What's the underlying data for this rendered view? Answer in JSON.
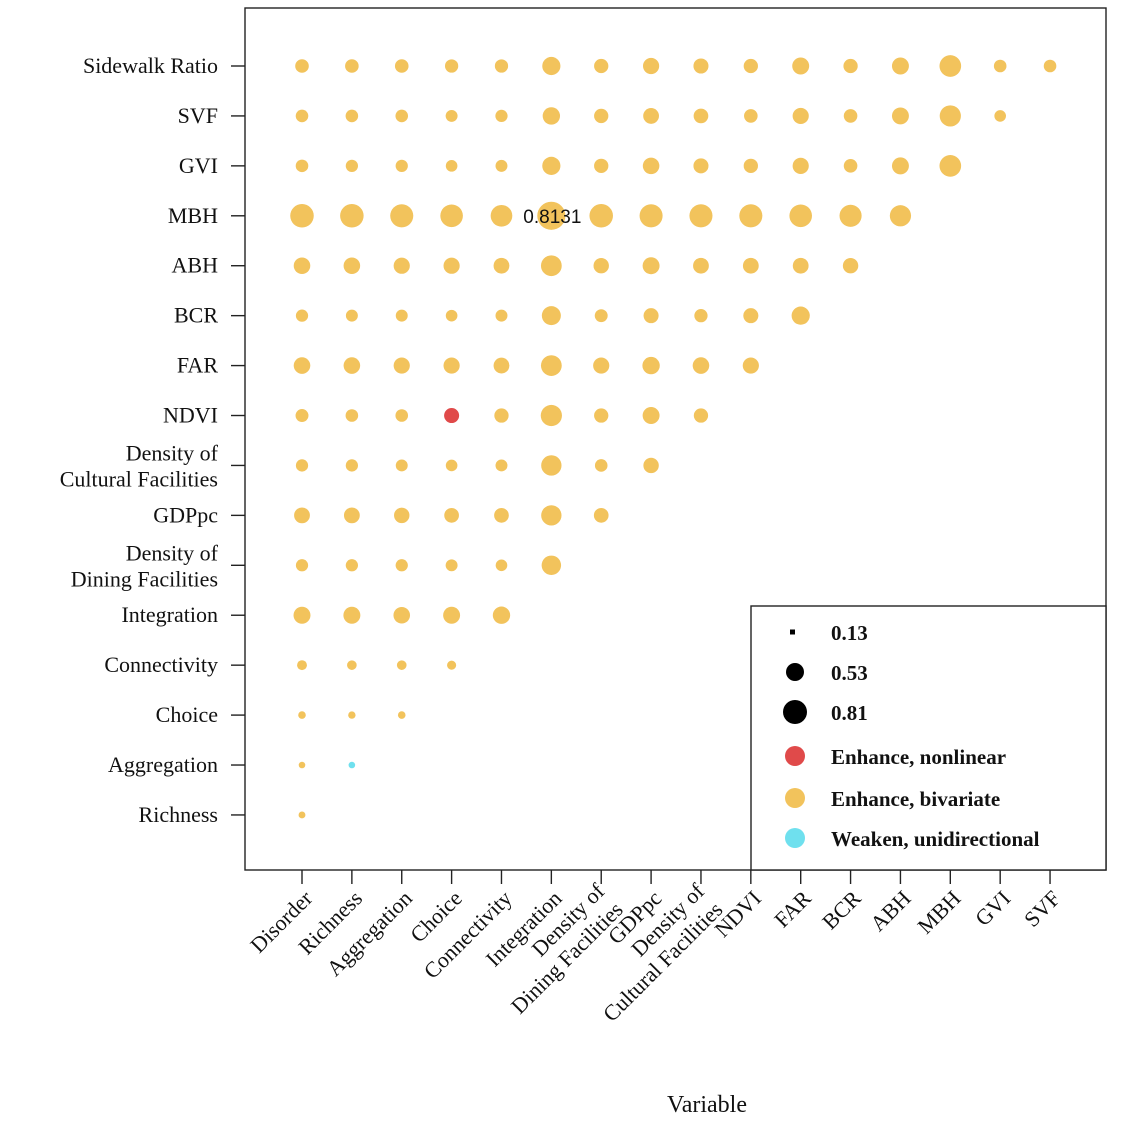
{
  "chart_data": {
    "type": "scatter",
    "subtype": "lower-triangle bubble matrix",
    "title": "",
    "xlabel": "Variable",
    "ylabel": "",
    "x_categories": [
      "Disorder",
      "Richness",
      "Aggregation",
      "Choice",
      "Connectivity",
      "Integration",
      "Density of\nDining Facilities",
      "GDPpc",
      "Density of\nCultural Facilities",
      "NDVI",
      "FAR",
      "BCR",
      "ABH",
      "MBH",
      "GVI",
      "SVF"
    ],
    "y_categories": [
      "Sidewalk Ratio",
      "SVF",
      "GVI",
      "MBH",
      "ABH",
      "BCR",
      "FAR",
      "NDVI",
      "Density of\nCultural Facilities",
      "GDPpc",
      "Density of\nDining Facilities",
      "Integration",
      "Connectivity",
      "Choice",
      "Aggregation",
      "Richness"
    ],
    "colors": {
      "Enhance, nonlinear": "#e04a4a",
      "Enhance, bivariate": "#f2c35c",
      "Weaken, unidirectional": "#6fe0ee"
    },
    "size_legend": [
      0.13,
      0.53,
      0.81
    ],
    "legend_position": "bottom-right",
    "legend_labels": [
      "0.13",
      "0.53",
      "0.81",
      "Enhance, nonlinear",
      "Enhance, bivariate",
      "Weaken, unidirectional"
    ],
    "annotation": {
      "text": "0.8131",
      "row": "MBH",
      "col": "Integration"
    },
    "rows": [
      {
        "y": "Sidewalk Ratio",
        "values": [
          0.48,
          0.48,
          0.48,
          0.47,
          0.47,
          0.6,
          0.5,
          0.55,
          0.52,
          0.5,
          0.57,
          0.5,
          0.57,
          0.68,
          0.45,
          0.45
        ],
        "types": [
          "b",
          "b",
          "b",
          "b",
          "b",
          "b",
          "b",
          "b",
          "b",
          "b",
          "b",
          "b",
          "b",
          "b",
          "b",
          "b"
        ]
      },
      {
        "y": "SVF",
        "values": [
          0.45,
          0.45,
          0.45,
          0.43,
          0.44,
          0.58,
          0.5,
          0.54,
          0.51,
          0.48,
          0.55,
          0.48,
          0.57,
          0.67,
          0.42
        ],
        "types": [
          "b",
          "b",
          "b",
          "b",
          "b",
          "b",
          "b",
          "b",
          "b",
          "b",
          "b",
          "b",
          "b",
          "b",
          "b"
        ]
      },
      {
        "y": "GVI",
        "values": [
          0.45,
          0.44,
          0.44,
          0.42,
          0.43,
          0.6,
          0.5,
          0.56,
          0.52,
          0.5,
          0.55,
          0.48,
          0.57,
          0.68
        ],
        "types": [
          "b",
          "b",
          "b",
          "b",
          "b",
          "b",
          "b",
          "b",
          "b",
          "b",
          "b",
          "b",
          "b",
          "b"
        ]
      },
      {
        "y": "MBH",
        "values": [
          0.72,
          0.72,
          0.71,
          0.7,
          0.68,
          0.8131,
          0.72,
          0.71,
          0.71,
          0.71,
          0.7,
          0.69,
          0.67
        ],
        "types": [
          "b",
          "b",
          "b",
          "b",
          "b",
          "b",
          "b",
          "b",
          "b",
          "b",
          "b",
          "b",
          "b"
        ]
      },
      {
        "y": "ABH",
        "values": [
          0.56,
          0.56,
          0.55,
          0.55,
          0.54,
          0.66,
          0.53,
          0.57,
          0.54,
          0.54,
          0.54,
          0.53
        ],
        "types": [
          "b",
          "b",
          "b",
          "b",
          "b",
          "b",
          "b",
          "b",
          "b",
          "b",
          "b",
          "b"
        ]
      },
      {
        "y": "BCR",
        "values": [
          0.44,
          0.43,
          0.43,
          0.42,
          0.43,
          0.62,
          0.46,
          0.52,
          0.47,
          0.52,
          0.6
        ],
        "types": [
          "b",
          "b",
          "b",
          "b",
          "b",
          "b",
          "b",
          "b",
          "b",
          "b",
          "b"
        ]
      },
      {
        "y": "FAR",
        "values": [
          0.56,
          0.56,
          0.55,
          0.55,
          0.54,
          0.66,
          0.55,
          0.58,
          0.56,
          0.55
        ],
        "types": [
          "b",
          "b",
          "b",
          "b",
          "b",
          "b",
          "b",
          "b",
          "b",
          "b"
        ]
      },
      {
        "y": "NDVI",
        "values": [
          0.46,
          0.45,
          0.45,
          0.52,
          0.5,
          0.67,
          0.5,
          0.57,
          0.5
        ],
        "types": [
          "b",
          "b",
          "b",
          "n",
          "b",
          "b",
          "b",
          "b",
          "b"
        ]
      },
      {
        "y": "Density of\nCultural Facilities",
        "values": [
          0.44,
          0.44,
          0.43,
          0.42,
          0.43,
          0.65,
          0.45,
          0.53
        ],
        "types": [
          "b",
          "b",
          "b",
          "b",
          "b",
          "b",
          "b",
          "b"
        ]
      },
      {
        "y": "GDPpc",
        "values": [
          0.54,
          0.54,
          0.53,
          0.51,
          0.51,
          0.65,
          0.51
        ],
        "types": [
          "b",
          "b",
          "b",
          "b",
          "b",
          "b",
          "b"
        ]
      },
      {
        "y": "Density of\nDining Facilities",
        "values": [
          0.44,
          0.44,
          0.44,
          0.43,
          0.42,
          0.63
        ],
        "types": [
          "b",
          "b",
          "b",
          "b",
          "b",
          "b"
        ]
      },
      {
        "y": "Integration",
        "values": [
          0.57,
          0.57,
          0.56,
          0.57,
          0.58
        ],
        "types": [
          "b",
          "b",
          "b",
          "b",
          "b"
        ]
      },
      {
        "y": "Connectivity",
        "values": [
          0.36,
          0.35,
          0.35,
          0.33
        ],
        "types": [
          "b",
          "b",
          "b",
          "b"
        ]
      },
      {
        "y": "Choice",
        "values": [
          0.26,
          0.25,
          0.26
        ],
        "types": [
          "b",
          "b",
          "b"
        ]
      },
      {
        "y": "Aggregation",
        "values": [
          0.2,
          0.2
        ],
        "types": [
          "b",
          "w"
        ]
      },
      {
        "y": "Richness",
        "values": [
          0.22
        ],
        "types": [
          "b"
        ]
      }
    ]
  }
}
